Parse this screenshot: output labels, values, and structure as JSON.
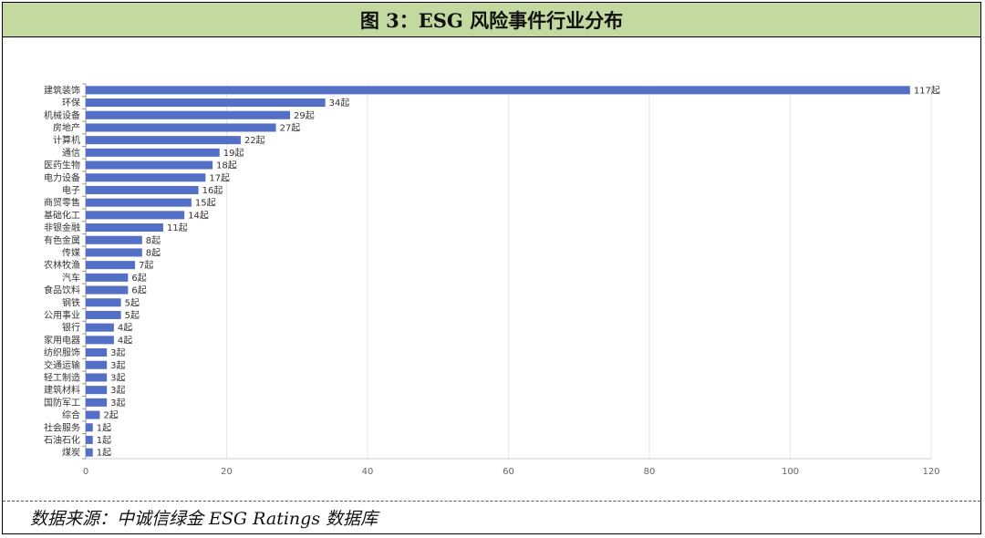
{
  "header": {
    "title": "图 3：ESG 风险事件行业分布"
  },
  "footer": {
    "source": "数据来源：中诚信绿金 ESG Ratings 数据库"
  },
  "chart_data": {
    "type": "bar",
    "orientation": "horizontal",
    "title": "",
    "xlabel": "",
    "ylabel": "",
    "xlim": [
      0,
      120
    ],
    "x_ticks": [
      0,
      20,
      40,
      60,
      80,
      100,
      120
    ],
    "grid": true,
    "bar_color": "#5470c6",
    "value_suffix": "起",
    "categories": [
      "建筑装饰",
      "环保",
      "机械设备",
      "房地产",
      "计算机",
      "通信",
      "医药生物",
      "电力设备",
      "电子",
      "商贸零售",
      "基础化工",
      "非银金融",
      "有色金属",
      "传媒",
      "农林牧渔",
      "汽车",
      "食品饮料",
      "钢铁",
      "公用事业",
      "银行",
      "家用电器",
      "纺织服饰",
      "交通运输",
      "轻工制造",
      "建筑材料",
      "国防军工",
      "综合",
      "社会服务",
      "石油石化",
      "煤炭"
    ],
    "values": [
      117,
      34,
      29,
      27,
      22,
      19,
      18,
      17,
      16,
      15,
      14,
      11,
      8,
      8,
      7,
      6,
      6,
      5,
      5,
      4,
      4,
      3,
      3,
      3,
      3,
      3,
      2,
      1,
      1,
      1
    ]
  }
}
